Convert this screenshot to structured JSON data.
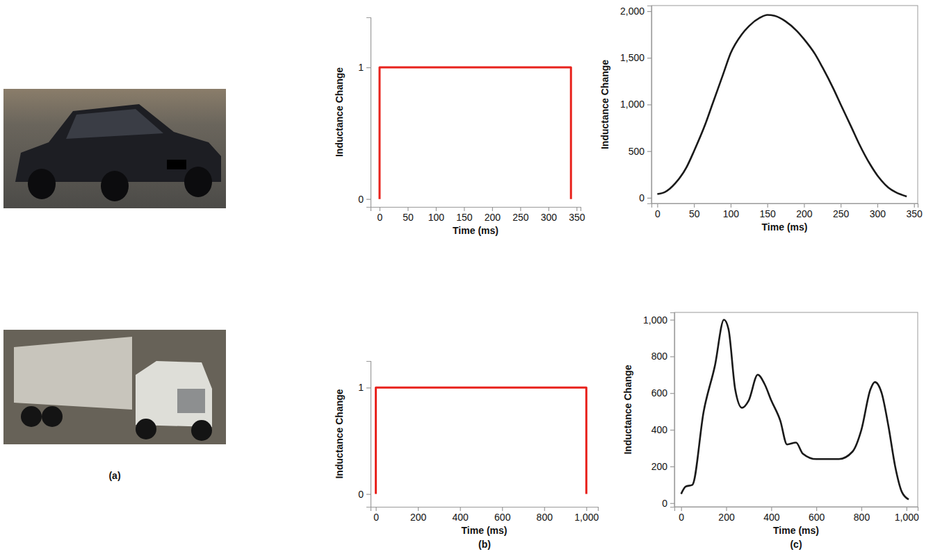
{
  "panel_labels": [
    "(a)",
    "(b)",
    "(c)"
  ],
  "chart_data": [
    {
      "type": "line",
      "x_label": "Time (ms)",
      "y_label": "Inductance Change",
      "x": [
        0,
        0,
        340,
        340
      ],
      "series": [
        {
          "color": "#e8221c",
          "values": [
            0,
            1,
            1,
            0
          ]
        }
      ],
      "xlim": [
        -16,
        357
      ],
      "ylim": [
        -0.06,
        1.38
      ],
      "xticks": [
        0,
        50,
        100,
        150,
        200,
        250,
        300,
        350
      ],
      "yticks": [
        0,
        1
      ]
    },
    {
      "type": "line",
      "x_label": "Time (ms)",
      "y_label": "Inductance Change",
      "x": [
        0,
        10,
        25,
        40,
        50,
        65,
        75,
        90,
        100,
        115,
        125,
        140,
        150,
        160,
        175,
        190,
        200,
        215,
        225,
        240,
        250,
        265,
        275,
        290,
        300,
        315,
        325,
        340
      ],
      "series": [
        {
          "color": "#1a1a1a",
          "values": [
            40,
            60,
            160,
            330,
            500,
            780,
            1000,
            1330,
            1550,
            1750,
            1840,
            1930,
            1960,
            1950,
            1890,
            1790,
            1700,
            1540,
            1400,
            1170,
            1000,
            750,
            580,
            360,
            240,
            110,
            60,
            15
          ]
        }
      ],
      "xlim": [
        -8,
        355
      ],
      "ylim": [
        -60,
        2060
      ],
      "xticks": [
        0,
        50,
        100,
        150,
        200,
        250,
        300,
        350
      ],
      "yticks": [
        0,
        500,
        {
          "value": 1000,
          "label": "1,000"
        },
        {
          "value": 1500,
          "label": "1,500"
        },
        {
          "value": 2000,
          "label": "2,000"
        }
      ]
    },
    {
      "type": "line",
      "x_label": "Time (ms)",
      "y_label": "Inductance Change",
      "x": [
        0,
        0,
        1000,
        1000
      ],
      "series": [
        {
          "color": "#e8221c",
          "values": [
            0,
            1,
            1,
            0
          ]
        }
      ],
      "xlim": [
        -25,
        1055
      ],
      "ylim": [
        -0.12,
        1.25
      ],
      "xticks": [
        0,
        200,
        400,
        600,
        800,
        {
          "value": 1000,
          "label": "1,000"
        }
      ],
      "yticks": [
        0,
        1
      ]
    },
    {
      "type": "line",
      "x_label": "Time (ms)",
      "y_label": "Inductance Change",
      "x": [
        0,
        20,
        50,
        100,
        150,
        190,
        210,
        240,
        270,
        300,
        340,
        370,
        400,
        440,
        470,
        510,
        540,
        600,
        700,
        760,
        800,
        840,
        860,
        890,
        920,
        950,
        980,
        1010
      ],
      "series": [
        {
          "color": "#1a1a1a",
          "values": [
            50,
            90,
            100,
            500,
            750,
            1000,
            950,
            620,
            520,
            560,
            700,
            650,
            560,
            450,
            320,
            330,
            270,
            240,
            240,
            280,
            400,
            620,
            660,
            600,
            420,
            200,
            60,
            20
          ]
        }
      ],
      "xlim": [
        -30,
        1050
      ],
      "ylim": [
        -20,
        1040
      ],
      "xticks": [
        0,
        200,
        400,
        600,
        800,
        {
          "value": 1000,
          "label": "1,000"
        }
      ],
      "yticks": [
        0,
        200,
        400,
        600,
        800,
        {
          "value": 1000,
          "label": "1,000"
        }
      ]
    }
  ]
}
